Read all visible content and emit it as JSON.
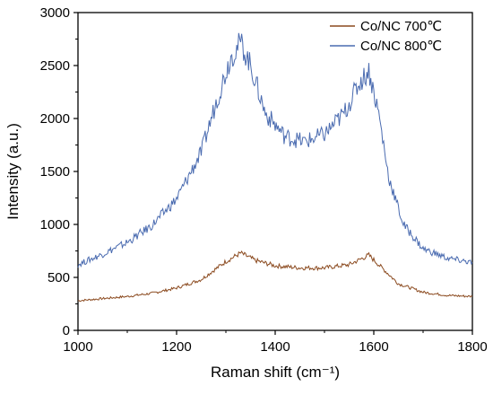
{
  "chart_data": {
    "type": "line",
    "title": "",
    "xlabel": "Raman shift (cm⁻¹)",
    "ylabel": "Intensity (a.u.)",
    "xlim": [
      1000,
      1800
    ],
    "ylim": [
      0,
      3000
    ],
    "xticks": [
      "1000",
      "1200",
      "1400",
      "1600",
      "1800"
    ],
    "yticks": [
      "0",
      "500",
      "1000",
      "1500",
      "2000",
      "2500",
      "3000"
    ],
    "grid": false,
    "legend_position": "top-right",
    "series": [
      {
        "name": "Co/NC 700℃",
        "color": "#8b4a1f",
        "x": [
          1000,
          1050,
          1100,
          1150,
          1200,
          1250,
          1300,
          1330,
          1360,
          1400,
          1450,
          1500,
          1550,
          1590,
          1610,
          1650,
          1700,
          1750,
          1800
        ],
        "y": [
          280,
          300,
          320,
          350,
          400,
          480,
          650,
          730,
          660,
          610,
          590,
          590,
          620,
          710,
          620,
          440,
          360,
          330,
          320
        ]
      },
      {
        "name": "Co/NC 800℃",
        "color": "#4a6bb0",
        "x": [
          1000,
          1050,
          1100,
          1150,
          1200,
          1250,
          1280,
          1310,
          1330,
          1350,
          1380,
          1420,
          1460,
          1500,
          1540,
          1570,
          1590,
          1610,
          1630,
          1660,
          1700,
          1750,
          1800
        ],
        "y": [
          620,
          720,
          830,
          990,
          1240,
          1680,
          2150,
          2580,
          2720,
          2500,
          2050,
          1830,
          1780,
          1850,
          2050,
          2330,
          2450,
          2050,
          1450,
          1000,
          770,
          680,
          640
        ]
      }
    ]
  }
}
